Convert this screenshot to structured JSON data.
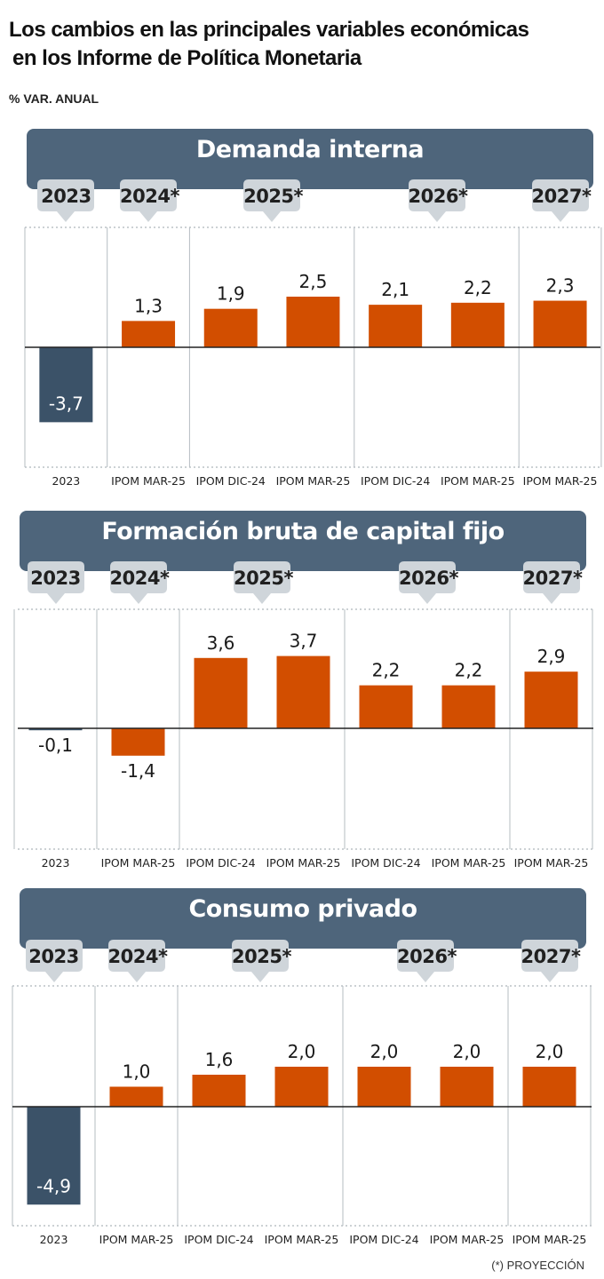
{
  "header": {
    "title_line1": "Los cambios en las principales variables económicas",
    "title_line2": "en los Informe de Política Monetaria",
    "unit_label": "% VAR. ANUAL"
  },
  "footnote": "(*) PROYECCIÓN",
  "colors": {
    "banner": "#4e657b",
    "negative_2023": "#3b5268",
    "projection_bar": "#d24e00",
    "year_tag": "#cfd5da"
  },
  "chart_data": [
    {
      "type": "bar",
      "title": "Demanda interna",
      "year_groups": [
        "2023",
        "2024*",
        "2025*",
        "2026*",
        "2027*"
      ],
      "categories": [
        "2023",
        "IPOM MAR-25",
        "IPOM DIC-24",
        "IPOM MAR-25",
        "IPOM DIC-24",
        "IPOM MAR-25",
        "IPOM MAR-25"
      ],
      "values": [
        -3.7,
        1.3,
        1.9,
        2.5,
        2.1,
        2.2,
        2.3
      ],
      "value_labels": [
        "-3,7",
        "1,3",
        "1,9",
        "2,5",
        "2,1",
        "2,2",
        "2,3"
      ]
    },
    {
      "type": "bar",
      "title": "Formación bruta de capital fijo",
      "year_groups": [
        "2023",
        "2024*",
        "2025*",
        "2026*",
        "2027*"
      ],
      "categories": [
        "2023",
        "IPOM MAR-25",
        "IPOM DIC-24",
        "IPOM MAR-25",
        "IPOM DIC-24",
        "IPOM MAR-25",
        "IPOM MAR-25"
      ],
      "values": [
        -0.1,
        -1.4,
        3.6,
        3.7,
        2.2,
        2.2,
        2.9
      ],
      "value_labels": [
        "-0,1",
        "-1,4",
        "3,6",
        "3,7",
        "2,2",
        "2,2",
        "2,9"
      ]
    },
    {
      "type": "bar",
      "title": "Consumo privado",
      "year_groups": [
        "2023",
        "2024*",
        "2025*",
        "2026*",
        "2027*"
      ],
      "categories": [
        "2023",
        "IPOM MAR-25",
        "IPOM DIC-24",
        "IPOM MAR-25",
        "IPOM DIC-24",
        "IPOM MAR-25",
        "IPOM MAR-25"
      ],
      "values": [
        -4.9,
        1.0,
        1.6,
        2.0,
        2.0,
        2.0,
        2.0
      ],
      "value_labels": [
        "-4,9",
        "1,0",
        "1,6",
        "2,0",
        "2,0",
        "2,0",
        "2,0"
      ]
    }
  ]
}
